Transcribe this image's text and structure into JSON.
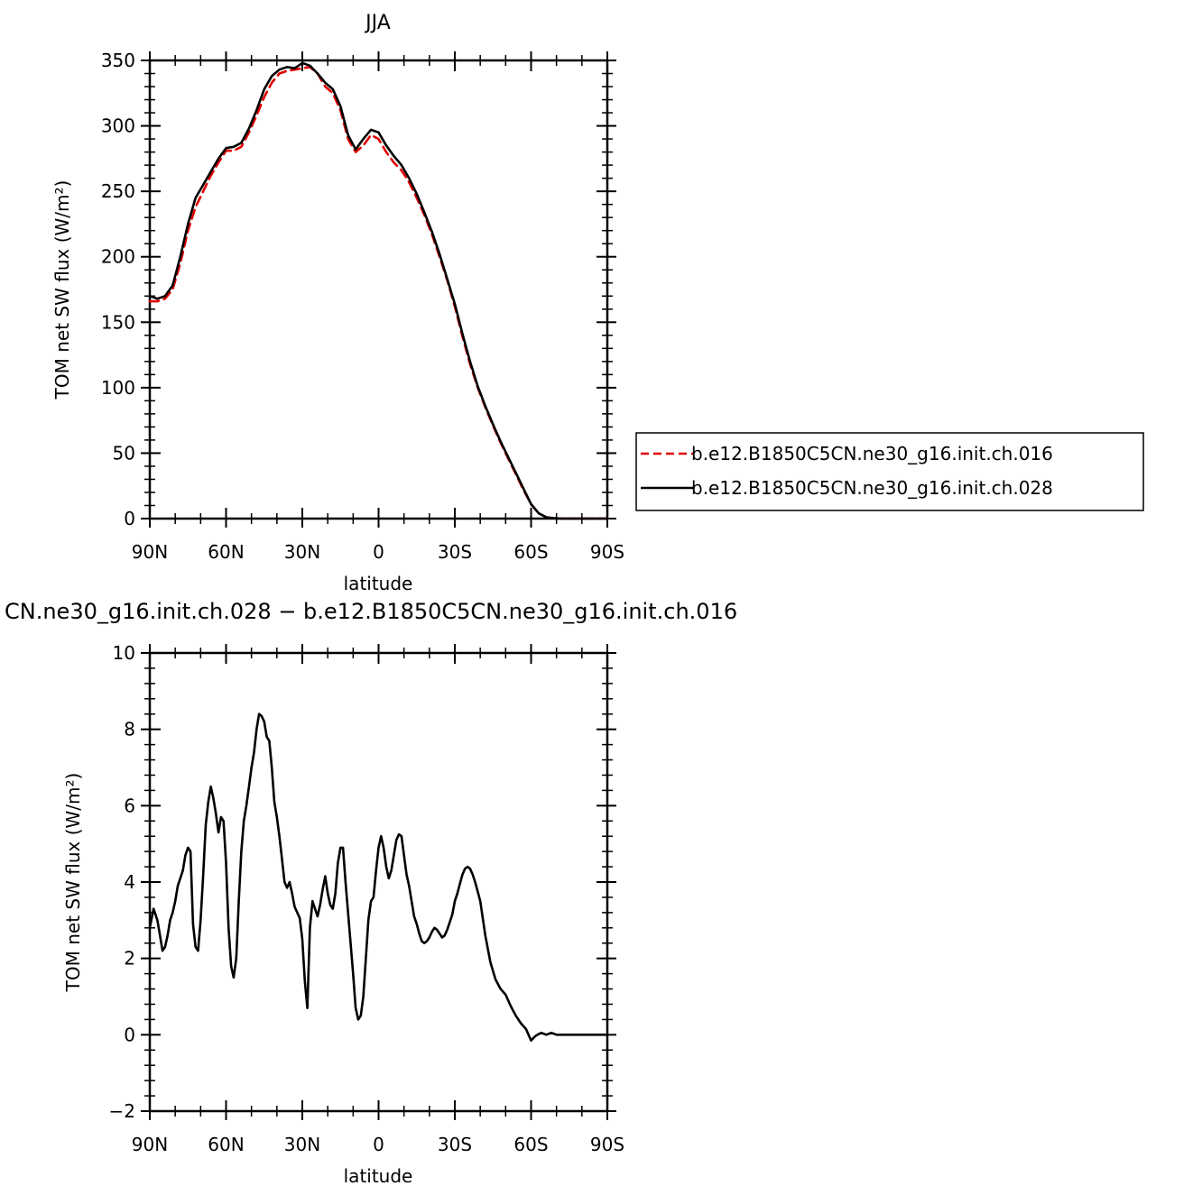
{
  "chart_data": [
    {
      "type": "line",
      "title": "JJA",
      "xlabel": "latitude",
      "ylabel": "TOM net SW flux (W/m²)",
      "xlim": [
        90,
        -90
      ],
      "ylim": [
        0,
        350
      ],
      "xticks": [
        90,
        60,
        30,
        0,
        -30,
        -60,
        -90
      ],
      "xtick_labels": [
        "90N",
        "60N",
        "30N",
        "0",
        "30S",
        "60S",
        "90S"
      ],
      "yticks": [
        0,
        50,
        100,
        150,
        200,
        250,
        300,
        350
      ],
      "ytick_labels": [
        "0",
        "50",
        "100",
        "150",
        "200",
        "250",
        "300",
        "350"
      ],
      "legend_position": "outside-right",
      "series": [
        {
          "name": "b.e12.B1850C5CN.ne30_g16.init.ch.016",
          "color": "#e00000",
          "dash": true,
          "x": [
            90,
            87,
            84,
            81,
            78,
            75,
            72,
            69,
            66,
            63,
            60,
            57,
            54,
            51,
            48,
            45,
            42,
            39,
            36,
            33,
            30,
            27,
            24,
            21,
            18,
            15,
            12,
            9,
            6,
            3,
            0,
            -3,
            -6,
            -9,
            -12,
            -15,
            -18,
            -21,
            -24,
            -27,
            -30,
            -33,
            -36,
            -39,
            -42,
            -45,
            -48,
            -51,
            -54,
            -57,
            -60,
            -63,
            -66,
            -69,
            -72,
            -75,
            -78,
            -81,
            -84,
            -87,
            -90
          ],
          "y": [
            166,
            166,
            168,
            175,
            195,
            220,
            238,
            250,
            262,
            272,
            281,
            281,
            284,
            295,
            308,
            322,
            333,
            340,
            342,
            343,
            344,
            345,
            340,
            330,
            325,
            312,
            290,
            280,
            285,
            293,
            290,
            280,
            272,
            266,
            257,
            245,
            232,
            217,
            200,
            182,
            162,
            139,
            118,
            100,
            85,
            71,
            58,
            46,
            34,
            22,
            11,
            4,
            1,
            0.3,
            0,
            0,
            0,
            0,
            0,
            0,
            0
          ]
        },
        {
          "name": "b.e12.B1850C5CN.ne30_g16.init.ch.028",
          "color": "#000000",
          "dash": false,
          "x": [
            90,
            87,
            84,
            81,
            78,
            75,
            72,
            69,
            66,
            63,
            60,
            57,
            54,
            51,
            48,
            45,
            42,
            39,
            36,
            33,
            30,
            27,
            24,
            21,
            18,
            15,
            12,
            9,
            6,
            3,
            0,
            -3,
            -6,
            -9,
            -12,
            -15,
            -18,
            -21,
            -24,
            -27,
            -30,
            -33,
            -36,
            -39,
            -42,
            -45,
            -48,
            -51,
            -54,
            -57,
            -60,
            -63,
            -66,
            -69,
            -72,
            -75,
            -78,
            -81,
            -84,
            -87,
            -90
          ],
          "y": [
            170,
            168,
            170,
            178,
            200,
            225,
            245,
            255,
            265,
            275,
            283,
            284,
            287,
            298,
            312,
            328,
            338,
            343,
            345,
            344,
            348,
            346,
            340,
            333,
            328,
            315,
            293,
            282,
            290,
            297,
            295,
            285,
            277,
            270,
            260,
            248,
            234,
            219,
            202,
            183,
            164,
            141,
            120,
            101,
            86,
            72,
            59,
            47,
            35,
            23,
            11,
            4,
            1,
            0.3,
            0,
            0,
            0,
            0,
            0,
            0,
            0
          ]
        }
      ]
    },
    {
      "type": "line",
      "title": "CN.ne30_g16.init.ch.028 − b.e12.B1850C5CN.ne30_g16.init.ch.016",
      "xlabel": "latitude",
      "ylabel": "TOM net SW flux (W/m²)",
      "xlim": [
        90,
        -90
      ],
      "ylim": [
        -2,
        10
      ],
      "xticks": [
        90,
        60,
        30,
        0,
        -30,
        -60,
        -90
      ],
      "xtick_labels": [
        "90N",
        "60N",
        "30N",
        "0",
        "30S",
        "60S",
        "90S"
      ],
      "yticks": [
        -2,
        0,
        2,
        4,
        6,
        8,
        10
      ],
      "ytick_labels": [
        "−2",
        "0",
        "2",
        "4",
        "6",
        "8",
        "10"
      ],
      "series": [
        {
          "color": "#000000",
          "x": [
            90,
            88.5,
            87,
            86,
            85,
            84,
            83,
            82,
            81,
            80,
            79,
            78,
            77,
            76,
            75,
            74,
            73,
            72,
            71,
            70,
            69,
            68,
            67,
            66,
            65,
            64,
            63,
            62,
            61,
            60,
            59,
            58,
            57,
            56,
            55,
            54,
            53,
            52,
            51,
            50,
            49,
            48,
            47,
            46,
            45,
            44,
            43,
            42,
            41,
            40,
            39,
            38,
            37,
            36,
            35,
            34,
            33,
            32,
            31,
            30,
            29,
            28,
            27,
            26,
            25,
            24,
            23,
            22,
            21,
            20,
            19,
            18,
            17,
            16,
            15,
            14,
            13,
            12,
            11,
            10,
            9,
            8,
            7,
            6,
            5,
            4,
            3,
            2,
            1,
            0,
            -1,
            -2,
            -3,
            -4,
            -5,
            -6,
            -7,
            -8,
            -9,
            -10,
            -11,
            -12,
            -13,
            -14,
            -15,
            -16,
            -17,
            -18,
            -19,
            -20,
            -21,
            -22,
            -23,
            -24,
            -25,
            -26,
            -27,
            -28,
            -29,
            -30,
            -31,
            -32,
            -33,
            -34,
            -35,
            -36,
            -37,
            -38,
            -39,
            -40,
            -42,
            -44,
            -46,
            -48,
            -50,
            -52,
            -54,
            -56,
            -58,
            -60,
            -61,
            -62,
            -63,
            -64,
            -66,
            -68,
            -70,
            -72,
            -75,
            -80,
            -85,
            -90
          ],
          "y": [
            2.8,
            3.3,
            3.0,
            2.6,
            2.2,
            2.3,
            2.6,
            3.0,
            3.2,
            3.5,
            3.9,
            4.1,
            4.3,
            4.7,
            4.9,
            4.8,
            2.9,
            2.3,
            2.2,
            3.0,
            4.2,
            5.5,
            6.1,
            6.5,
            6.2,
            5.8,
            5.3,
            5.7,
            5.6,
            4.5,
            2.8,
            1.8,
            1.5,
            2.0,
            3.5,
            4.8,
            5.6,
            6.0,
            6.5,
            7.0,
            7.4,
            8.0,
            8.4,
            8.35,
            8.2,
            7.8,
            7.7,
            7.0,
            6.1,
            5.7,
            5.2,
            4.6,
            4.0,
            3.85,
            4.0,
            3.7,
            3.35,
            3.2,
            3.05,
            2.5,
            1.4,
            0.7,
            2.8,
            3.5,
            3.3,
            3.1,
            3.4,
            3.8,
            4.15,
            3.7,
            3.4,
            3.3,
            3.7,
            4.5,
            4.9,
            4.9,
            4.0,
            3.2,
            2.4,
            1.6,
            0.7,
            0.4,
            0.5,
            1.0,
            2.0,
            3.0,
            3.5,
            3.6,
            4.3,
            4.9,
            5.2,
            4.9,
            4.4,
            4.1,
            4.3,
            4.7,
            5.1,
            5.25,
            5.2,
            4.7,
            4.2,
            3.9,
            3.5,
            3.1,
            2.9,
            2.65,
            2.45,
            2.4,
            2.45,
            2.55,
            2.7,
            2.8,
            2.75,
            2.65,
            2.55,
            2.6,
            2.75,
            2.95,
            3.15,
            3.5,
            3.7,
            3.95,
            4.2,
            4.35,
            4.4,
            4.35,
            4.2,
            4.0,
            3.75,
            3.5,
            2.6,
            1.9,
            1.45,
            1.2,
            1.05,
            0.75,
            0.5,
            0.3,
            0.15,
            -0.15,
            -0.08,
            -0.02,
            0.02,
            0.05,
            0.0,
            0.05,
            0.0,
            0.0,
            0.0,
            0.0,
            0.0,
            0.0
          ]
        }
      ]
    }
  ]
}
